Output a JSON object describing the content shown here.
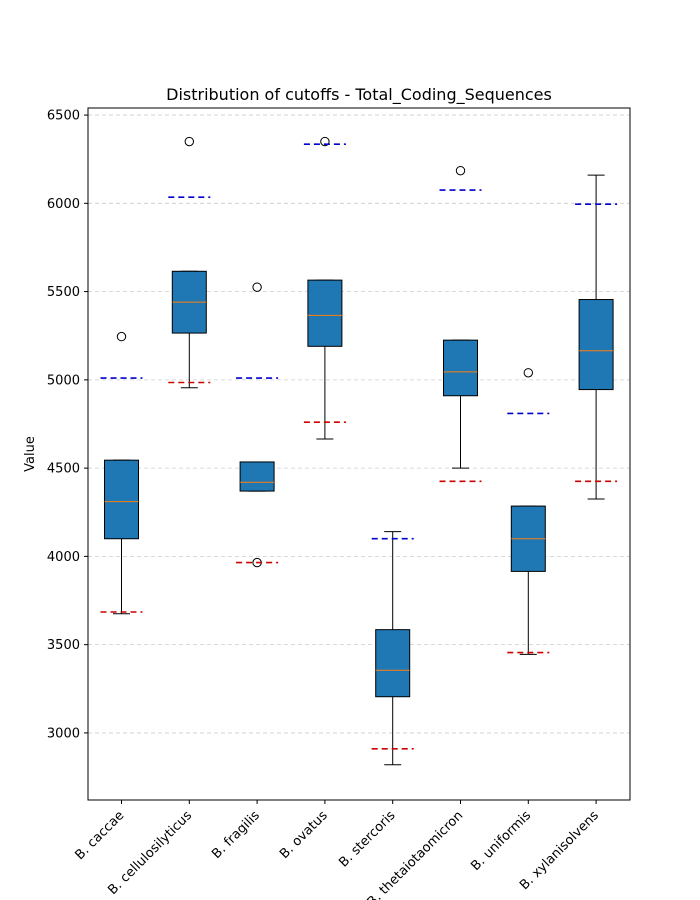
{
  "chart_data": {
    "type": "boxplot",
    "title": "Distribution of cutoffs - Total_Coding_Sequences",
    "xlabel": "",
    "ylabel": "Value",
    "ylim": [
      2620,
      6540
    ],
    "yticks": [
      3000,
      3500,
      4000,
      4500,
      5000,
      5500,
      6000,
      6500
    ],
    "grid": "y-dashed",
    "box_color": "#1f77b4",
    "median_color": "#ff7f0e",
    "upper_cutoff_color": "#0000cc",
    "lower_cutoff_color": "#cc0000",
    "categories": [
      {
        "name": "B. caccae",
        "q1": 4100,
        "median": 4310,
        "q3": 4545,
        "whisker_low": 3675,
        "whisker_high": 4545,
        "outliers": [
          5245
        ],
        "upper_cutoff": 5010,
        "lower_cutoff": 3685
      },
      {
        "name": "B. cellulosilyticus",
        "q1": 5265,
        "median": 5440,
        "q3": 5615,
        "whisker_low": 4955,
        "whisker_high": 5615,
        "outliers": [
          6350
        ],
        "upper_cutoff": 6035,
        "lower_cutoff": 4985
      },
      {
        "name": "B. fragilis",
        "q1": 4370,
        "median": 4420,
        "q3": 4535,
        "whisker_low": 4370,
        "whisker_high": 4535,
        "outliers": [
          5525,
          3965
        ],
        "upper_cutoff": 5010,
        "lower_cutoff": 3965
      },
      {
        "name": "B. ovatus",
        "q1": 5190,
        "median": 5365,
        "q3": 5565,
        "whisker_low": 4665,
        "whisker_high": 5565,
        "outliers": [
          6350
        ],
        "upper_cutoff": 6335,
        "lower_cutoff": 4760
      },
      {
        "name": "B. stercoris",
        "q1": 3205,
        "median": 3355,
        "q3": 3585,
        "whisker_low": 2820,
        "whisker_high": 4140,
        "outliers": [],
        "upper_cutoff": 4100,
        "lower_cutoff": 2910
      },
      {
        "name": "B. thetaiotaomicron",
        "q1": 4910,
        "median": 5045,
        "q3": 5225,
        "whisker_low": 4500,
        "whisker_high": 5225,
        "outliers": [
          6185
        ],
        "upper_cutoff": 6075,
        "lower_cutoff": 4425
      },
      {
        "name": "B. uniformis",
        "q1": 3915,
        "median": 4100,
        "q3": 4285,
        "whisker_low": 3445,
        "whisker_high": 4285,
        "outliers": [
          5040
        ],
        "upper_cutoff": 4810,
        "lower_cutoff": 3455
      },
      {
        "name": "B. xylanisolvens",
        "q1": 4945,
        "median": 5165,
        "q3": 5455,
        "whisker_low": 4325,
        "whisker_high": 6160,
        "outliers": [],
        "upper_cutoff": 5995,
        "lower_cutoff": 4425
      }
    ]
  }
}
